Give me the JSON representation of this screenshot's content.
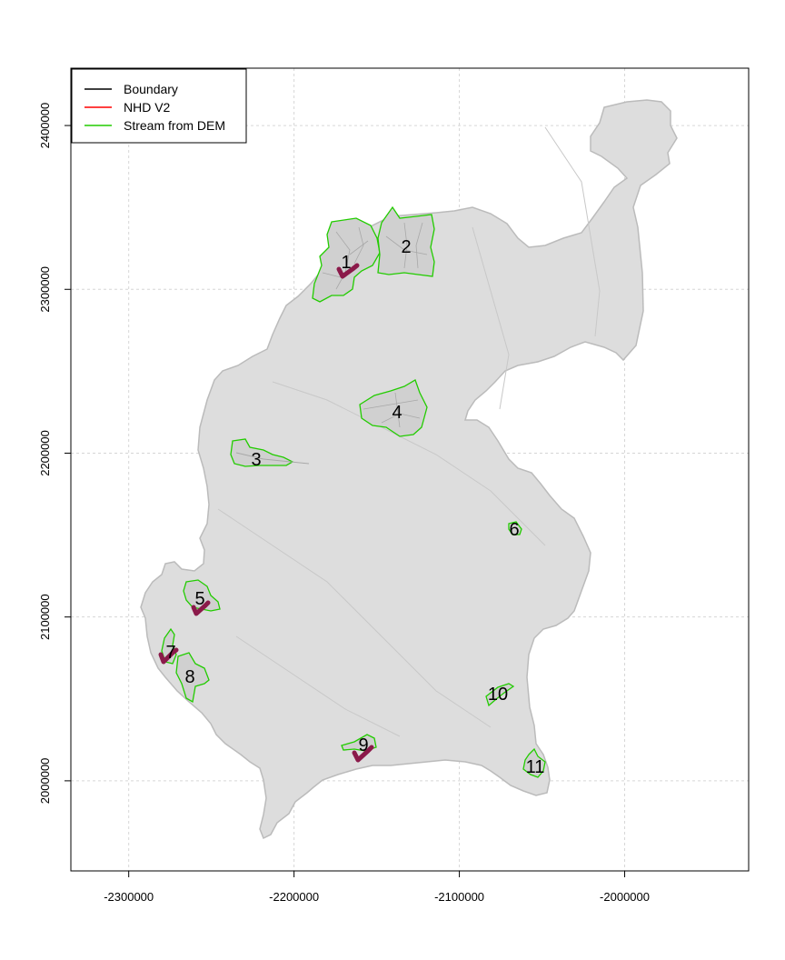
{
  "chart_data": {
    "type": "map",
    "legend_position": "top-left",
    "grid": true,
    "xlim": [
      -2335000,
      -1925000
    ],
    "ylim": [
      1945000,
      2435000
    ],
    "x_ticks": [
      -2300000,
      -2200000,
      -2100000,
      -2000000
    ],
    "x_tick_labels": [
      "-2300000",
      "-2200000",
      "-2100000",
      "-2000000"
    ],
    "y_ticks": [
      2000000,
      2100000,
      2200000,
      2300000,
      2400000
    ],
    "y_tick_labels": [
      "2000000",
      "2100000",
      "2200000",
      "2300000",
      "2400000"
    ],
    "legend": [
      {
        "label": "Boundary",
        "color": "#000000"
      },
      {
        "label": "NHD V2",
        "color": "#ff0000"
      },
      {
        "label": "Stream from DEM",
        "color": "#22cc00"
      }
    ],
    "colors": {
      "region_fill": "#dddddd",
      "region_edge": "#bbbbbb",
      "subbasin_outline": "#22cc00",
      "internal_streams": "#a8a8a8",
      "nhd_highlight": "#8b1a4a"
    },
    "subbasins": [
      {
        "label": "1",
        "x": -2170000,
        "y": 2318000
      },
      {
        "label": "2",
        "x": -2136000,
        "y": 2329000
      },
      {
        "label": "3",
        "x": -2221000,
        "y": 2199000
      },
      {
        "label": "4",
        "x": -2136000,
        "y": 2229000
      },
      {
        "label": "5",
        "x": -2256000,
        "y": 2115000
      },
      {
        "label": "6",
        "x": -2067000,
        "y": 2157000
      },
      {
        "label": "7",
        "x": -2274000,
        "y": 2086000
      },
      {
        "label": "8",
        "x": -2263000,
        "y": 2072000
      },
      {
        "label": "9",
        "x": -2157000,
        "y": 2025000
      },
      {
        "label": "10",
        "x": -2077000,
        "y": 2057000
      },
      {
        "label": "11",
        "x": -2050000,
        "y": 2012000
      }
    ]
  }
}
